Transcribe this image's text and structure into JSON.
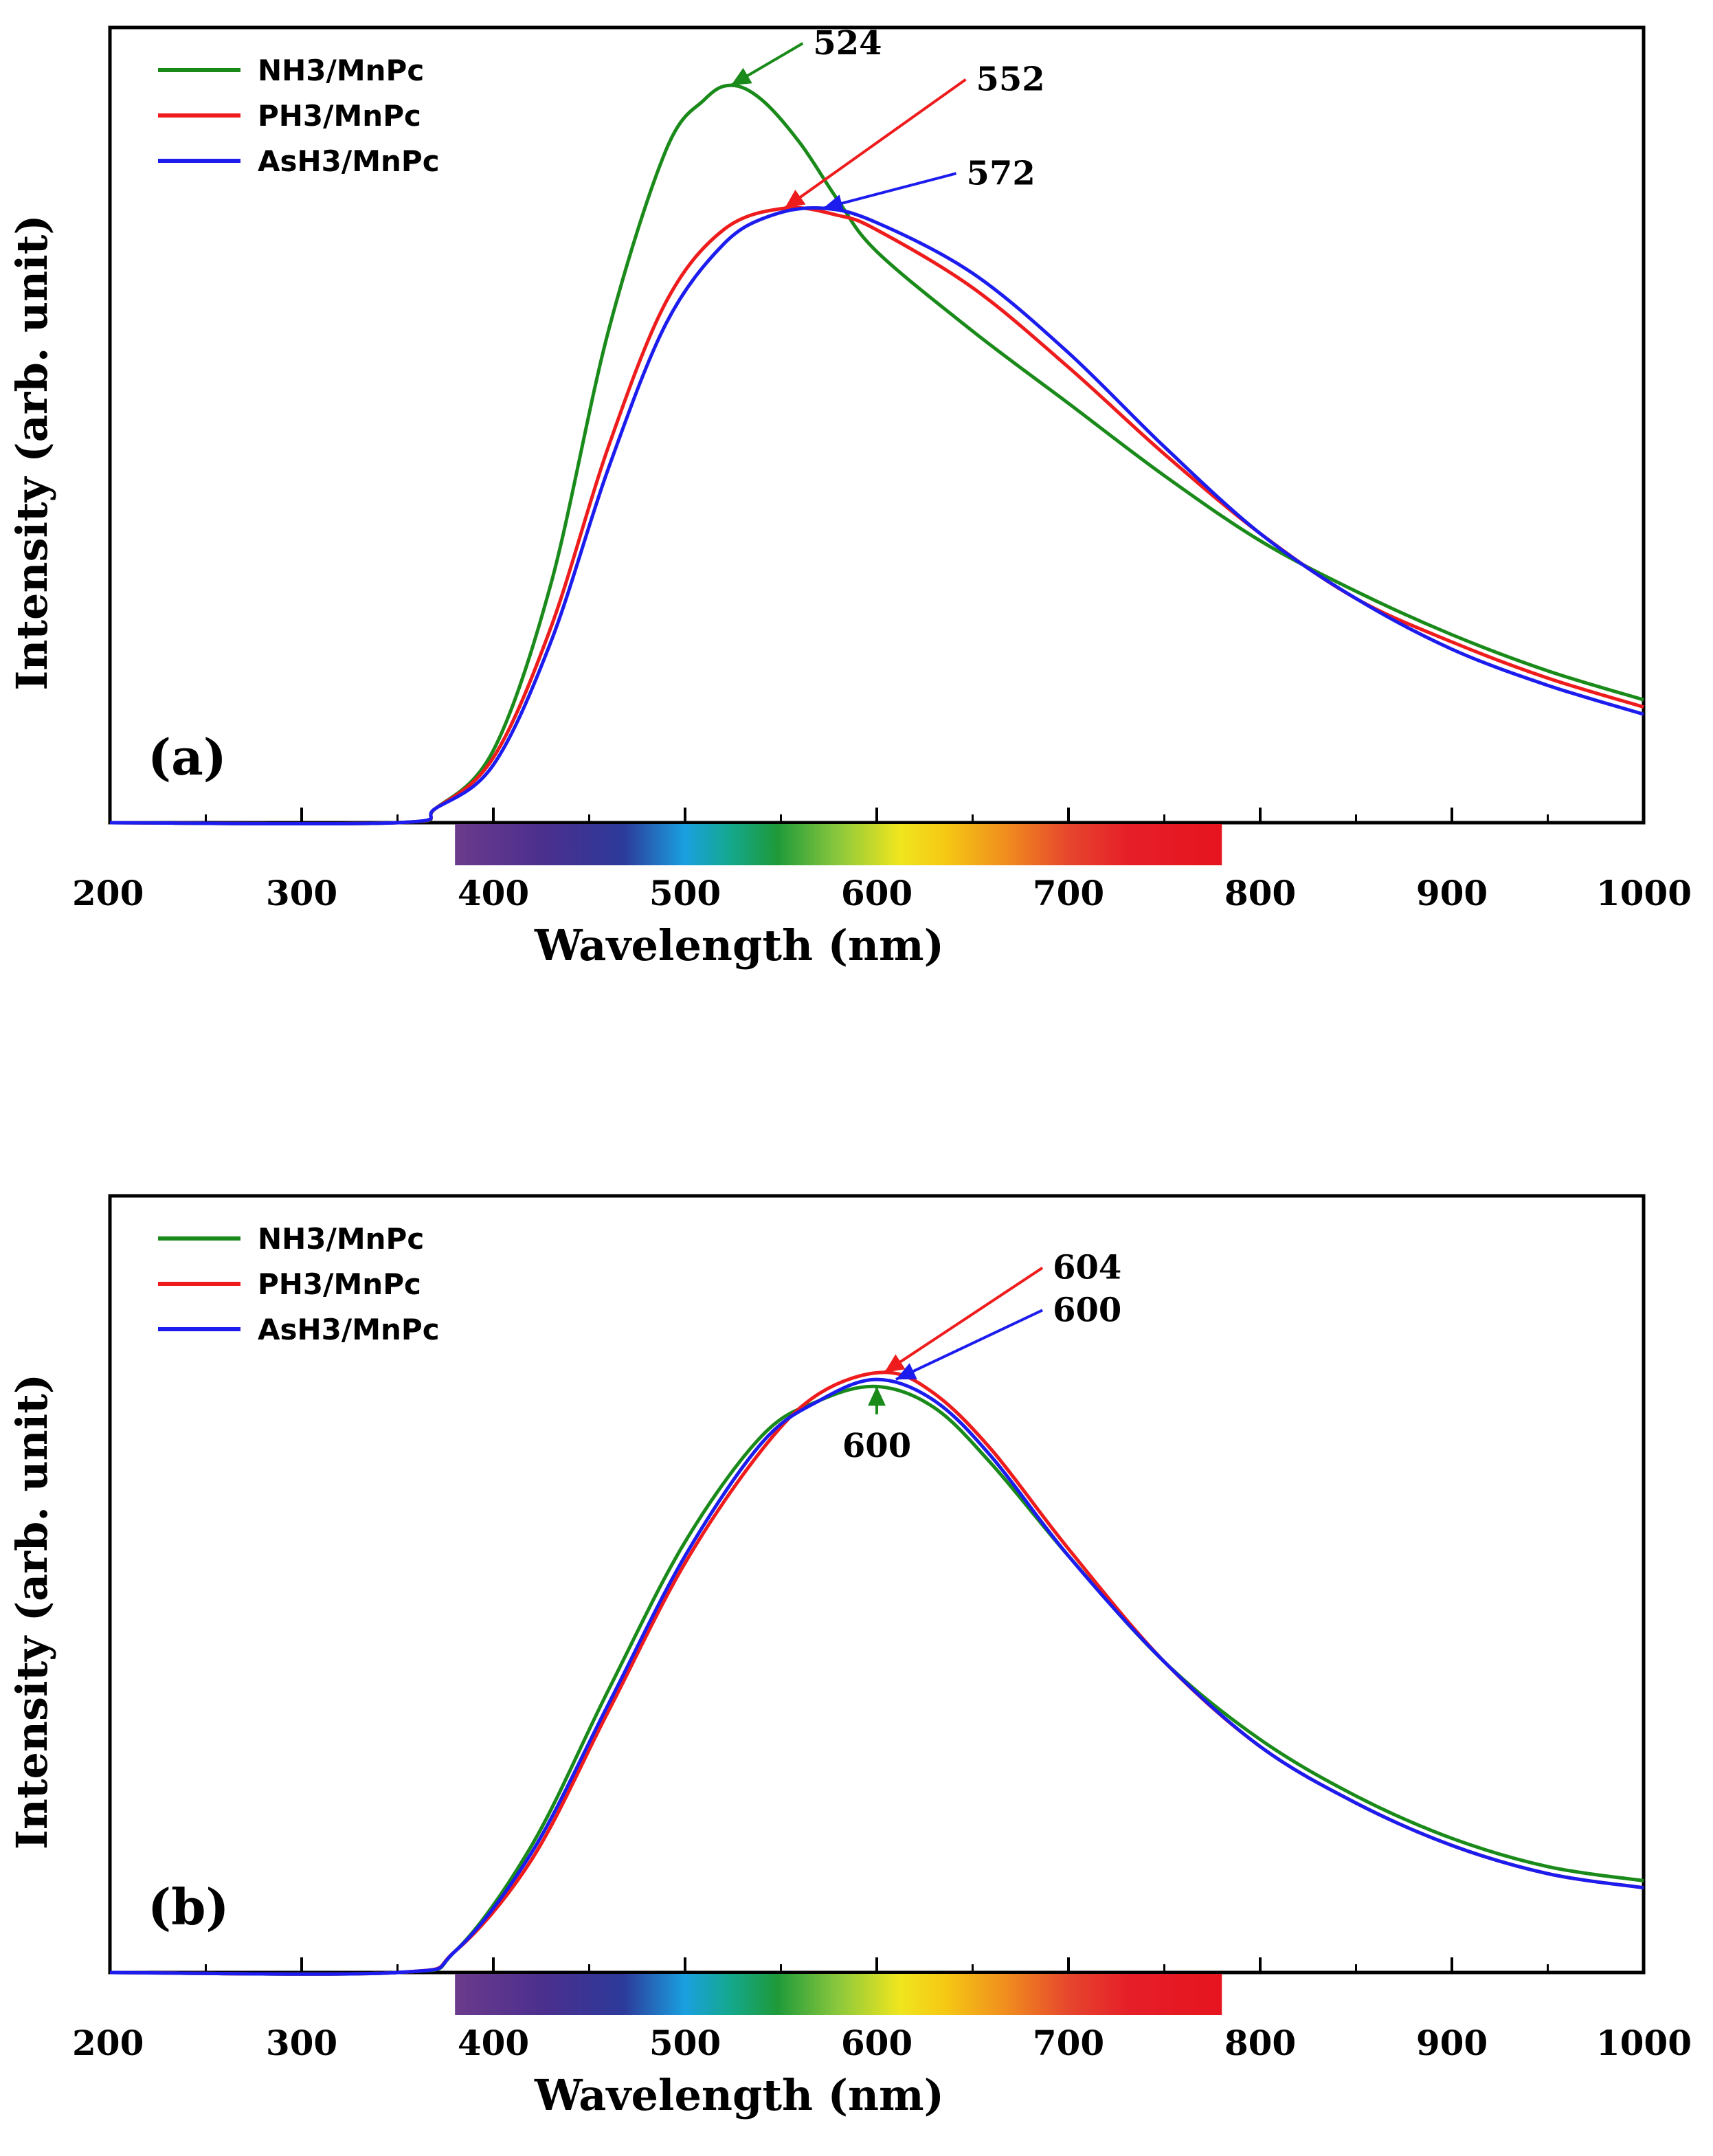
{
  "chart_data": [
    {
      "type": "line",
      "panel_label": "(a)",
      "xlabel": "Wavelength (nm)",
      "ylabel": "Intensity (arb. unit)",
      "xlim": [
        200,
        1000
      ],
      "ylim": [
        0,
        1.1
      ],
      "x_ticks": [
        200,
        300,
        400,
        500,
        600,
        700,
        800,
        900,
        1000
      ],
      "legend_position": "top-left",
      "spectrum_bar_range": [
        380,
        780
      ],
      "series": [
        {
          "name": "NH3/MnPc",
          "color": "#1a8a1a",
          "x": [
            200,
            350,
            370,
            400,
            430,
            460,
            490,
            510,
            524,
            540,
            560,
            580,
            600,
            650,
            700,
            750,
            800,
            850,
            900,
            950,
            1000
          ],
          "values": [
            0.0,
            0.0,
            0.02,
            0.1,
            0.33,
            0.68,
            0.93,
            1.0,
            1.02,
            1.0,
            0.94,
            0.86,
            0.79,
            0.68,
            0.58,
            0.48,
            0.39,
            0.32,
            0.26,
            0.21,
            0.17
          ]
        },
        {
          "name": "PH3/MnPc",
          "color": "#ee1c1c",
          "x": [
            200,
            350,
            370,
            400,
            430,
            460,
            490,
            520,
            552,
            580,
            600,
            650,
            700,
            750,
            800,
            850,
            900,
            950,
            1000
          ],
          "values": [
            0.0,
            0.0,
            0.02,
            0.09,
            0.27,
            0.52,
            0.72,
            0.82,
            0.85,
            0.84,
            0.82,
            0.74,
            0.63,
            0.51,
            0.4,
            0.31,
            0.25,
            0.2,
            0.16
          ]
        },
        {
          "name": "AsH3/MnPc",
          "color": "#1c1cee",
          "x": [
            200,
            350,
            370,
            400,
            430,
            460,
            490,
            520,
            545,
            572,
            600,
            650,
            700,
            750,
            800,
            850,
            900,
            950,
            1000
          ],
          "values": [
            0.0,
            0.0,
            0.02,
            0.08,
            0.25,
            0.49,
            0.69,
            0.8,
            0.84,
            0.85,
            0.83,
            0.76,
            0.65,
            0.52,
            0.4,
            0.31,
            0.24,
            0.19,
            0.15
          ]
        }
      ],
      "annotations": [
        {
          "text": "524",
          "color": "#1a8a1a",
          "x": 524,
          "y": 1.02,
          "text_x": 565,
          "text_y": 1.08
        },
        {
          "text": "552",
          "color": "#ee1c1c",
          "x": 552,
          "y": 0.85,
          "text_x": 650,
          "text_y": 1.03
        },
        {
          "text": "572",
          "color": "#1c1cee",
          "x": 572,
          "y": 0.85,
          "text_x": 645,
          "text_y": 0.9
        }
      ]
    },
    {
      "type": "line",
      "panel_label": "(b)",
      "xlabel": "Wavelength (nm)",
      "ylabel": "Intensity (arb. unit)",
      "xlim": [
        200,
        1000
      ],
      "ylim": [
        0,
        1.1
      ],
      "x_ticks": [
        200,
        300,
        400,
        500,
        600,
        700,
        800,
        900,
        1000
      ],
      "legend_position": "top-left",
      "spectrum_bar_range": [
        380,
        780
      ],
      "series": [
        {
          "name": "NH3/MnPc",
          "color": "#1a8a1a",
          "x": [
            200,
            350,
            380,
            420,
            460,
            500,
            540,
            570,
            600,
            630,
            660,
            700,
            750,
            800,
            850,
            900,
            950,
            1000
          ],
          "values": [
            0.0,
            0.0,
            0.03,
            0.18,
            0.4,
            0.61,
            0.76,
            0.81,
            0.83,
            0.8,
            0.72,
            0.59,
            0.44,
            0.33,
            0.25,
            0.19,
            0.15,
            0.13
          ]
        },
        {
          "name": "PH3/MnPc",
          "color": "#ee1c1c",
          "x": [
            200,
            350,
            380,
            420,
            460,
            500,
            540,
            570,
            604,
            630,
            660,
            700,
            750,
            800,
            850,
            900,
            950,
            1000
          ],
          "values": [
            0.0,
            0.0,
            0.03,
            0.16,
            0.37,
            0.58,
            0.74,
            0.82,
            0.85,
            0.82,
            0.74,
            0.6,
            0.44,
            0.32,
            0.24,
            0.18,
            0.14,
            0.12
          ]
        },
        {
          "name": "AsH3/MnPc",
          "color": "#1c1cee",
          "x": [
            200,
            350,
            380,
            420,
            460,
            500,
            540,
            570,
            600,
            630,
            660,
            700,
            750,
            800,
            850,
            900,
            950,
            1000
          ],
          "values": [
            0.0,
            0.0,
            0.03,
            0.17,
            0.38,
            0.59,
            0.75,
            0.81,
            0.84,
            0.81,
            0.73,
            0.59,
            0.44,
            0.32,
            0.24,
            0.18,
            0.14,
            0.12
          ]
        }
      ],
      "annotations": [
        {
          "text": "604",
          "color": "#ee1c1c",
          "x": 604,
          "y": 0.85,
          "text_x": 690,
          "text_y": 1.0
        },
        {
          "text": "600",
          "color": "#1c1cee",
          "x": 610,
          "y": 0.84,
          "text_x": 690,
          "text_y": 0.94
        },
        {
          "text": "600",
          "color": "#1a8a1a",
          "x": 600,
          "y": 0.83,
          "text_x": 600,
          "text_y": 0.74
        }
      ]
    }
  ]
}
